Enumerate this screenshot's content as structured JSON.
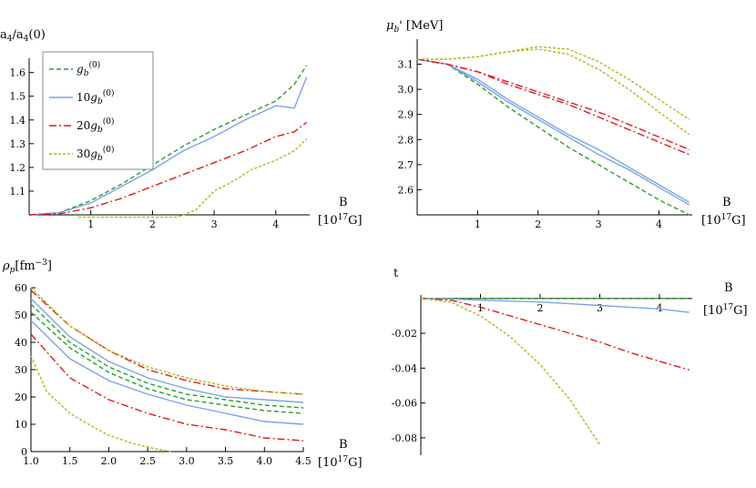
{
  "colors": {
    "green": "#2a9d2a",
    "blue": "#7aa5e8",
    "red": "#e01b1b",
    "olive": "#b5b522"
  },
  "legend": {
    "items": [
      {
        "base": "g",
        "pre": "",
        "color": "#2a9d2a",
        "dash": "5,3"
      },
      {
        "base": "g",
        "pre": "10",
        "color": "#7aa5e8",
        "dash": ""
      },
      {
        "base": "g",
        "pre": "20",
        "color": "#e01b1b",
        "dash": "8,3,2,3"
      },
      {
        "base": "g",
        "pre": "30",
        "color": "#b5b522",
        "dash": "3,2"
      }
    ],
    "sub": "b",
    "sup": "(0)"
  },
  "chart_data": [
    {
      "id": "a4",
      "type": "line",
      "ylabel": "a4/a4(0)",
      "xlabel": "B",
      "xunit_text": "[10",
      "xunit_sup": "17",
      "xunit_end": "G]",
      "xlim": [
        0,
        4.55
      ],
      "ylim": [
        1.0,
        1.66
      ],
      "xticks": [
        1,
        2,
        3,
        4
      ],
      "yticks": [
        1.1,
        1.2,
        1.3,
        1.4,
        1.5,
        1.6
      ],
      "xtick_labels": [
        "1",
        "2",
        "3",
        "4"
      ],
      "ytick_labels": [
        "1.1",
        "1.2",
        "1.3",
        "1.4",
        "1.5",
        "1.6"
      ],
      "series": [
        {
          "color": "#2a9d2a",
          "dash": "5,3",
          "x": [
            0,
            0.5,
            1,
            1.5,
            2,
            2.5,
            3,
            3.5,
            4,
            4.3,
            4.5
          ],
          "y": [
            1.0,
            1.01,
            1.06,
            1.13,
            1.21,
            1.29,
            1.36,
            1.42,
            1.48,
            1.55,
            1.63
          ]
        },
        {
          "color": "#7aa5e8",
          "dash": "",
          "x": [
            0,
            0.5,
            1,
            1.5,
            2,
            2.5,
            3,
            3.5,
            4,
            4.3,
            4.5
          ],
          "y": [
            1.0,
            1.01,
            1.05,
            1.12,
            1.19,
            1.27,
            1.33,
            1.4,
            1.46,
            1.45,
            1.58
          ]
        },
        {
          "color": "#e01b1b",
          "dash": "8,3,2,3",
          "x": [
            0,
            0.5,
            1,
            1.5,
            2,
            2.5,
            3,
            3.5,
            4,
            4.3,
            4.5
          ],
          "y": [
            1.0,
            1.005,
            1.03,
            1.07,
            1.12,
            1.17,
            1.22,
            1.27,
            1.33,
            1.35,
            1.39
          ]
        },
        {
          "color": "#b5b522",
          "dash": "3,2",
          "x": [
            0.8,
            1.2,
            1.6,
            2.0,
            2.4,
            2.7,
            3.0,
            3.3,
            3.6,
            4.0,
            4.3,
            4.5
          ],
          "y": [
            0.99,
            0.99,
            0.99,
            0.99,
            0.99,
            1.02,
            1.1,
            1.14,
            1.19,
            1.23,
            1.27,
            1.32
          ]
        }
      ]
    },
    {
      "id": "mu",
      "type": "line",
      "ylabel_sym": "μ",
      "ylabel_sub": "b",
      "ylabel_rest": "' [MeV]",
      "xlabel": "B",
      "xunit_text": "[10",
      "xunit_sup": "17",
      "xunit_end": "G]",
      "xlim": [
        0,
        4.55
      ],
      "ylim": [
        2.5,
        3.2
      ],
      "xticks": [
        1,
        2,
        3,
        4
      ],
      "yticks": [
        2.6,
        2.7,
        2.8,
        2.9,
        3.0,
        3.1
      ],
      "xtick_labels": [
        "1",
        "2",
        "3",
        "4"
      ],
      "ytick_labels": [
        "2.6",
        "2.7",
        "2.8",
        "2.9",
        "3.0",
        "3.1"
      ],
      "series": [
        {
          "color": "#2a9d2a",
          "dash": "5,3",
          "x": [
            0,
            0.5,
            1,
            1.5,
            2,
            2.5,
            3,
            3.5,
            4,
            4.5
          ],
          "y": [
            3.12,
            3.1,
            3.02,
            2.93,
            2.85,
            2.77,
            2.7,
            2.63,
            2.56,
            2.5
          ]
        },
        {
          "color": "#7aa5e8",
          "dash": "",
          "x": [
            0,
            0.5,
            1,
            1.5,
            2,
            2.5,
            3,
            3.5,
            4,
            4.5
          ],
          "y": [
            3.12,
            3.1,
            3.04,
            2.96,
            2.89,
            2.82,
            2.76,
            2.69,
            2.62,
            2.55
          ]
        },
        {
          "color": "#7aa5e8",
          "dash": "",
          "x": [
            0,
            0.5,
            1,
            1.5,
            2,
            2.5,
            3,
            3.5,
            4,
            4.5
          ],
          "y": [
            3.12,
            3.1,
            3.03,
            2.95,
            2.88,
            2.81,
            2.74,
            2.68,
            2.61,
            2.54
          ]
        },
        {
          "color": "#e01b1b",
          "dash": "8,3,2,3",
          "x": [
            0,
            0.5,
            1,
            1.5,
            2,
            2.5,
            3,
            3.5,
            4,
            4.5
          ],
          "y": [
            3.12,
            3.1,
            3.07,
            3.03,
            2.99,
            2.95,
            2.91,
            2.86,
            2.81,
            2.76
          ]
        },
        {
          "color": "#e01b1b",
          "dash": "8,3,2,3",
          "x": [
            0,
            0.5,
            1,
            1.5,
            2,
            2.5,
            3,
            3.5,
            4,
            4.5
          ],
          "y": [
            3.12,
            3.1,
            3.07,
            3.02,
            2.98,
            2.94,
            2.89,
            2.84,
            2.79,
            2.74
          ]
        },
        {
          "color": "#b5b522",
          "dash": "3,2",
          "x": [
            0,
            0.5,
            1,
            1.5,
            2,
            2.5,
            3,
            3.5,
            4,
            4.5
          ],
          "y": [
            3.12,
            3.12,
            3.13,
            3.15,
            3.17,
            3.16,
            3.11,
            3.04,
            2.96,
            2.88
          ]
        },
        {
          "color": "#b5b522",
          "dash": "3,2",
          "x": [
            0,
            0.5,
            1,
            1.5,
            2,
            2.5,
            3,
            3.5,
            4,
            4.5
          ],
          "y": [
            3.12,
            3.12,
            3.13,
            3.15,
            3.16,
            3.14,
            3.08,
            3.0,
            2.91,
            2.82
          ]
        }
      ]
    },
    {
      "id": "rho",
      "type": "line",
      "ylabel_sym": "ρ",
      "ylabel_sub": "p",
      "ylabel_rest": "[fm",
      "ylabel_sup": "−3",
      "ylabel_end": "]",
      "xlabel": "B",
      "xunit_text": "[10",
      "xunit_sup": "17",
      "xunit_end": "G]",
      "xlim": [
        1.0,
        4.5
      ],
      "ylim": [
        0,
        60
      ],
      "xticks": [
        1.0,
        1.5,
        2.0,
        2.5,
        3.0,
        3.5,
        4.0,
        4.5
      ],
      "yticks": [
        0,
        10,
        20,
        30,
        40,
        50,
        60
      ],
      "xtick_labels": [
        "1.0",
        "1.5",
        "2.0",
        "2.5",
        "3.0",
        "3.5",
        "4.0",
        "4.5"
      ],
      "ytick_labels": [
        "0",
        "10",
        "20",
        "30",
        "40",
        "50",
        "60"
      ],
      "series": [
        {
          "color": "#e01b1b",
          "dash": "8,3,2,3",
          "x": [
            1.0,
            1.5,
            2.0,
            2.5,
            3.0,
            3.5,
            4.0,
            4.5
          ],
          "y": [
            59,
            46,
            37,
            30,
            26,
            23,
            22,
            21
          ]
        },
        {
          "color": "#b5b522",
          "dash": "3,2",
          "x": [
            1.0,
            1.5,
            2.0,
            2.5,
            3.0,
            3.5,
            4.0,
            4.5
          ],
          "y": [
            60,
            46,
            37,
            31,
            27,
            24,
            22,
            21
          ]
        },
        {
          "color": "#7aa5e8",
          "dash": "",
          "x": [
            1.0,
            1.5,
            2.0,
            2.5,
            3.0,
            3.5,
            4.0,
            4.5
          ],
          "y": [
            56,
            42,
            33,
            27,
            23,
            20,
            19,
            18
          ]
        },
        {
          "color": "#2a9d2a",
          "dash": "5,3",
          "x": [
            1.0,
            1.5,
            2.0,
            2.5,
            3.0,
            3.5,
            4.0,
            4.5
          ],
          "y": [
            54,
            40,
            31,
            25,
            21,
            19,
            17,
            16
          ]
        },
        {
          "color": "#2a9d2a",
          "dash": "5,3",
          "x": [
            1.0,
            1.5,
            2.0,
            2.5,
            3.0,
            3.5,
            4.0,
            4.5
          ],
          "y": [
            51,
            38,
            29,
            23,
            19,
            17,
            15,
            14
          ]
        },
        {
          "color": "#7aa5e8",
          "dash": "",
          "x": [
            1.0,
            1.5,
            2.0,
            2.5,
            3.0,
            3.5,
            4.0,
            4.5
          ],
          "y": [
            48,
            34,
            26,
            21,
            17,
            14,
            11,
            10
          ]
        },
        {
          "color": "#e01b1b",
          "dash": "8,3,2,3",
          "x": [
            1.0,
            1.5,
            2.0,
            2.5,
            3.0,
            3.5,
            4.0,
            4.5
          ],
          "y": [
            43,
            27,
            19,
            14,
            10,
            8,
            5,
            4
          ]
        },
        {
          "color": "#b5b522",
          "dash": "3,2",
          "x": [
            1.0,
            1.2,
            1.5,
            1.8,
            2.0,
            2.3,
            2.6,
            2.8
          ],
          "y": [
            35,
            22,
            14,
            9,
            6,
            3,
            1,
            0
          ]
        }
      ]
    },
    {
      "id": "t",
      "type": "line",
      "ylabel": "t",
      "xlabel": "B",
      "xunit_text": "[10",
      "xunit_sup": "17",
      "xunit_end": "G]",
      "xlim": [
        0,
        4.55
      ],
      "ylim": [
        -0.09,
        0.002
      ],
      "xticks": [
        1,
        2,
        3,
        4
      ],
      "yticks": [
        -0.08,
        -0.06,
        -0.04,
        -0.02
      ],
      "xtick_labels": [
        "1",
        "2",
        "3",
        "4"
      ],
      "ytick_labels": [
        "-0.08",
        "-0.06",
        "-0.04",
        "-0.02"
      ],
      "series": [
        {
          "color": "#2a9d2a",
          "dash": "5,3",
          "x": [
            0,
            1,
            2,
            3,
            4,
            4.5
          ],
          "y": [
            0,
            0,
            0,
            0,
            0,
            0
          ]
        },
        {
          "color": "#7aa5e8",
          "dash": "",
          "x": [
            0,
            0.5,
            1,
            1.5,
            2,
            2.5,
            3,
            3.5,
            4,
            4.5
          ],
          "y": [
            0,
            -0.0003,
            -0.001,
            -0.0015,
            -0.002,
            -0.003,
            -0.004,
            -0.005,
            -0.006,
            -0.008
          ]
        },
        {
          "color": "#e01b1b",
          "dash": "8,3,2,3",
          "x": [
            0,
            0.5,
            1,
            1.5,
            2,
            2.5,
            3,
            3.5,
            4,
            4.5
          ],
          "y": [
            0,
            -0.001,
            -0.005,
            -0.01,
            -0.015,
            -0.02,
            -0.025,
            -0.031,
            -0.036,
            -0.041
          ]
        },
        {
          "color": "#b5b522",
          "dash": "3,2",
          "x": [
            0,
            0.5,
            1,
            1.5,
            2,
            2.5,
            3.0
          ],
          "y": [
            0,
            -0.002,
            -0.01,
            -0.022,
            -0.038,
            -0.058,
            -0.084
          ]
        }
      ]
    }
  ]
}
